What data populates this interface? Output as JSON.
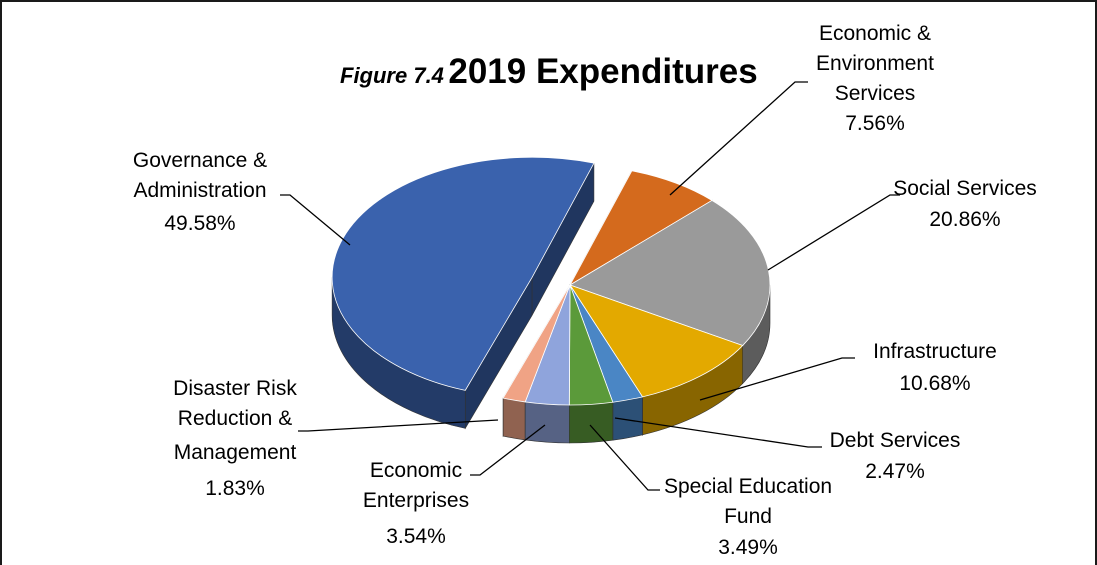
{
  "chart_data": {
    "type": "pie",
    "style": "3d-exploded",
    "title_prefix": "Figure 7.4",
    "title": "2019 Expenditures",
    "slices": [
      {
        "label": [
          "Economic &",
          "Environment",
          "Services"
        ],
        "value": 7.56,
        "display": "7.56%",
        "color": "#d46a1d"
      },
      {
        "label": [
          "Social Services"
        ],
        "value": 20.86,
        "display": "20.86%",
        "color": "#9a9a9a"
      },
      {
        "label": [
          "Infrastructure"
        ],
        "value": 10.68,
        "display": "10.68%",
        "color": "#e3a900"
      },
      {
        "label": [
          "Debt Services"
        ],
        "value": 2.47,
        "display": "2.47%",
        "color": "#4a86c5"
      },
      {
        "label": [
          "Special Education",
          "Fund"
        ],
        "value": 3.49,
        "display": "3.49%",
        "color": "#5b9a3a"
      },
      {
        "label": [
          "Economic",
          "Enterprises"
        ],
        "value": 3.54,
        "display": "3.54%",
        "color": "#8fa4dc"
      },
      {
        "label": [
          "Disaster Risk",
          "Reduction &",
          "Management"
        ],
        "value": 1.83,
        "display": "1.83%",
        "color": "#f0a385"
      },
      {
        "label": [
          "Governance &",
          "Administration"
        ],
        "value": 49.58,
        "display": "49.58%",
        "color": "#3a62ad"
      }
    ]
  }
}
